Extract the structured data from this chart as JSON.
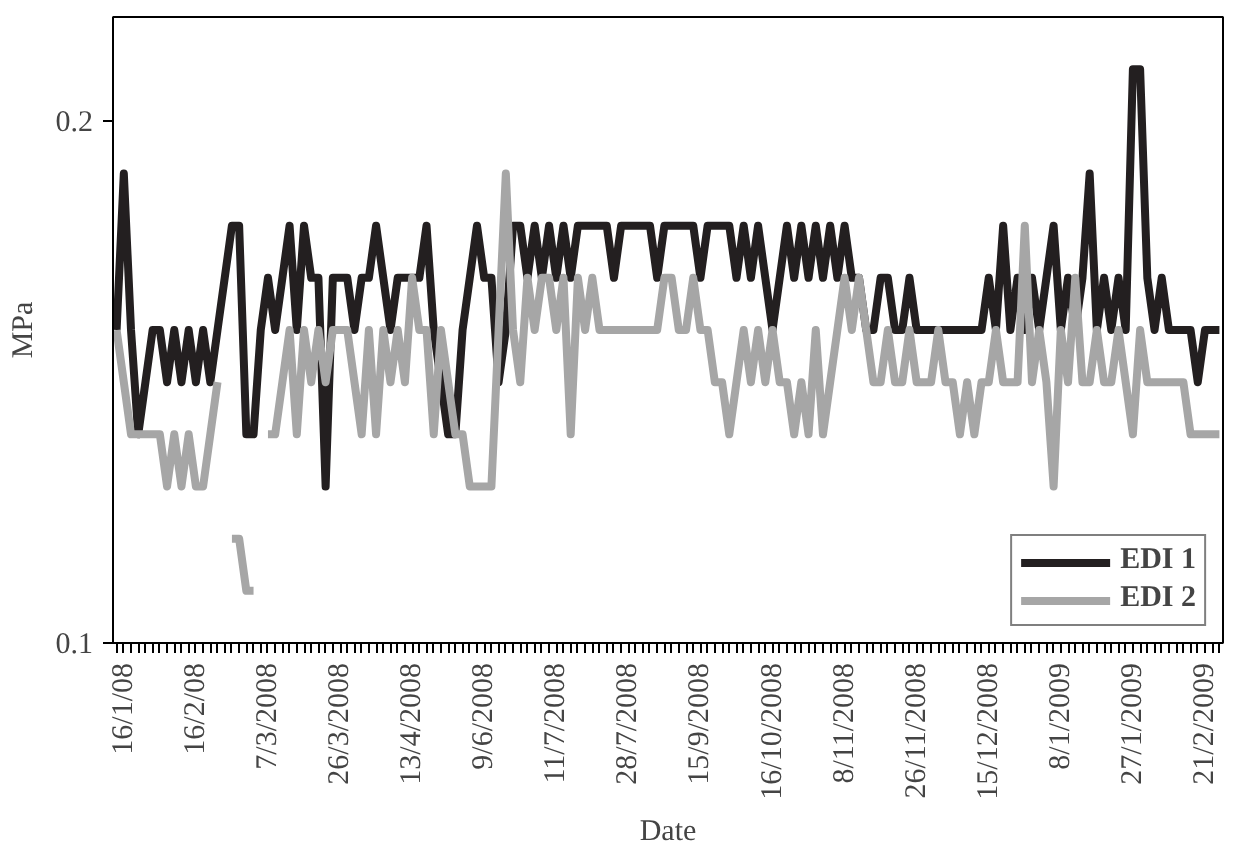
{
  "chart_data": {
    "type": "line",
    "xlabel": "Date",
    "ylabel": "MPa",
    "categories": [
      null,
      "16/1/08",
      null,
      null,
      null,
      null,
      null,
      null,
      null,
      null,
      null,
      "16/2/08",
      null,
      null,
      null,
      null,
      null,
      null,
      null,
      null,
      null,
      "7/3/2008",
      null,
      null,
      null,
      null,
      null,
      null,
      null,
      null,
      null,
      "26/3/2008",
      null,
      null,
      null,
      null,
      null,
      null,
      null,
      null,
      null,
      "13/4/2008",
      null,
      null,
      null,
      null,
      null,
      null,
      null,
      null,
      null,
      "9/6/2008",
      null,
      null,
      null,
      null,
      null,
      null,
      null,
      null,
      null,
      "11/7/2008",
      null,
      null,
      null,
      null,
      null,
      null,
      null,
      null,
      null,
      "28/7/2008",
      null,
      null,
      null,
      null,
      null,
      null,
      null,
      null,
      null,
      "15/9/2008",
      null,
      null,
      null,
      null,
      null,
      null,
      null,
      null,
      null,
      "16/10/2008",
      null,
      null,
      null,
      null,
      null,
      null,
      null,
      null,
      null,
      "8/11/2008",
      null,
      null,
      null,
      null,
      null,
      null,
      null,
      null,
      null,
      "26/11/2008",
      null,
      null,
      null,
      null,
      null,
      null,
      null,
      null,
      null,
      "15/12/2008",
      null,
      null,
      null,
      null,
      null,
      null,
      null,
      null,
      null,
      "8/1/2009",
      null,
      null,
      null,
      null,
      null,
      null,
      null,
      null,
      null,
      "27/1/2009",
      null,
      null,
      null,
      null,
      null,
      null,
      null,
      null,
      null,
      "21/2/2009",
      null,
      null
    ],
    "series": [
      {
        "name": "EDI 1",
        "color": "#231f20",
        "values": [
          0.16,
          0.19,
          0.16,
          0.14,
          0.15,
          0.16,
          0.16,
          0.15,
          0.16,
          0.15,
          0.16,
          0.15,
          0.16,
          0.15,
          0.16,
          0.17,
          0.18,
          0.18,
          0.14,
          0.14,
          0.16,
          0.17,
          0.16,
          0.17,
          0.18,
          0.16,
          0.18,
          0.17,
          0.17,
          0.13,
          0.17,
          0.17,
          0.17,
          0.16,
          0.17,
          0.17,
          0.18,
          0.17,
          0.16,
          0.17,
          0.17,
          0.17,
          0.17,
          0.18,
          0.16,
          0.15,
          0.14,
          0.14,
          0.16,
          0.17,
          0.18,
          0.17,
          0.17,
          0.15,
          0.16,
          0.18,
          0.18,
          0.17,
          0.18,
          0.17,
          0.18,
          0.17,
          0.18,
          0.17,
          0.18,
          0.18,
          0.18,
          0.18,
          0.18,
          0.17,
          0.18,
          0.18,
          0.18,
          0.18,
          0.18,
          0.17,
          0.18,
          0.18,
          0.18,
          0.18,
          0.18,
          0.17,
          0.18,
          0.18,
          0.18,
          0.18,
          0.17,
          0.18,
          0.17,
          0.18,
          0.17,
          0.16,
          0.17,
          0.18,
          0.17,
          0.18,
          0.17,
          0.18,
          0.17,
          0.18,
          0.17,
          0.18,
          0.17,
          0.17,
          0.16,
          0.16,
          0.17,
          0.17,
          0.16,
          0.16,
          0.17,
          0.16,
          0.16,
          0.16,
          0.16,
          0.16,
          0.16,
          0.16,
          0.16,
          0.16,
          0.16,
          0.17,
          0.16,
          0.18,
          0.16,
          0.17,
          0.16,
          0.17,
          0.16,
          0.17,
          0.18,
          0.16,
          0.17,
          0.16,
          0.17,
          0.19,
          0.16,
          0.17,
          0.16,
          0.17,
          0.16,
          0.21,
          0.21,
          0.17,
          0.16,
          0.17,
          0.16,
          0.16,
          0.16,
          0.16,
          0.15,
          0.16,
          0.16,
          0.16
        ]
      },
      {
        "name": "EDI 2",
        "color": "#a6a6a6",
        "values": [
          0.16,
          0.15,
          0.14,
          0.14,
          0.14,
          0.14,
          0.14,
          0.13,
          0.14,
          0.13,
          0.14,
          0.13,
          0.13,
          0.14,
          0.15,
          null,
          0.12,
          0.12,
          0.11,
          0.11,
          null,
          0.14,
          0.14,
          0.15,
          0.16,
          0.14,
          0.16,
          0.15,
          0.16,
          0.15,
          0.16,
          0.16,
          0.16,
          0.15,
          0.14,
          0.16,
          0.14,
          0.16,
          0.15,
          0.16,
          0.15,
          0.17,
          0.16,
          0.16,
          0.14,
          0.16,
          0.15,
          0.14,
          0.14,
          0.13,
          0.13,
          0.13,
          0.13,
          0.16,
          0.19,
          0.16,
          0.15,
          0.17,
          0.16,
          0.17,
          0.17,
          0.16,
          0.17,
          0.14,
          0.17,
          0.16,
          0.17,
          0.16,
          0.16,
          0.16,
          0.16,
          0.16,
          0.16,
          0.16,
          0.16,
          0.16,
          0.17,
          0.17,
          0.16,
          0.16,
          0.17,
          0.16,
          0.16,
          0.15,
          0.15,
          0.14,
          0.15,
          0.16,
          0.15,
          0.16,
          0.15,
          0.16,
          0.15,
          0.15,
          0.14,
          0.15,
          0.14,
          0.16,
          0.14,
          0.15,
          0.16,
          0.17,
          0.16,
          0.17,
          0.16,
          0.15,
          0.15,
          0.16,
          0.15,
          0.15,
          0.16,
          0.15,
          0.15,
          0.15,
          0.16,
          0.15,
          0.15,
          0.14,
          0.15,
          0.14,
          0.15,
          0.15,
          0.16,
          0.15,
          0.15,
          0.15,
          0.18,
          0.15,
          0.16,
          0.15,
          0.13,
          0.16,
          0.15,
          0.17,
          0.15,
          0.15,
          0.16,
          0.15,
          0.15,
          0.16,
          0.15,
          0.14,
          0.16,
          0.15,
          0.15,
          0.15,
          0.15,
          0.15,
          0.15,
          0.14,
          0.14,
          0.14,
          0.14,
          0.14
        ]
      }
    ],
    "ylim": [
      0.1,
      0.22
    ],
    "yticks": [
      0.1,
      0.2
    ],
    "grid": false,
    "legend": "bottom right",
    "marker": "none",
    "line_style": "solid"
  }
}
